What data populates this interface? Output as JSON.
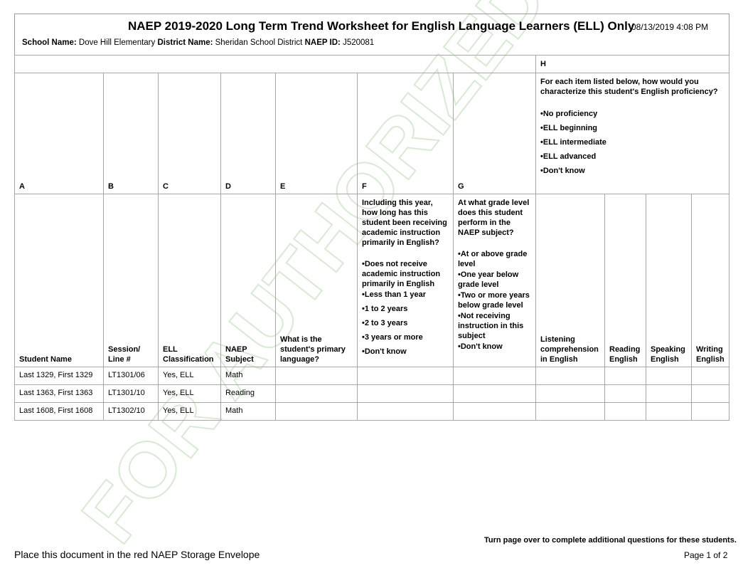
{
  "header": {
    "title": "NAEP 2019-2020 Long Term Trend Worksheet for English Language Learners (ELL) Only",
    "timestamp": "08/13/2019 4:08 PM",
    "school_label": "School Name:",
    "school": "Dove Hill Elementary",
    "district_label": "District Name:",
    "district": "Sheridan School District",
    "naep_id_label": "NAEP ID:",
    "naep_id": "J520081"
  },
  "watermark": "FOR AUTHORIZED USE ONLY",
  "columns": {
    "letters": [
      "A",
      "B",
      "C",
      "D",
      "E",
      "F",
      "G",
      "H"
    ],
    "h_question": "For each item listed below, how would you characterize this student's English proficiency?",
    "h_options": [
      "•No proficiency",
      "•ELL beginning",
      "•ELL intermediate",
      "•ELL advanced",
      "•Don't know"
    ],
    "headings": [
      "Student Name",
      "Session/ Line #",
      "ELL Classification",
      "NAEP Subject",
      "What is the student's primary language?"
    ],
    "f_question": "Including this year, how long has this student been receiving academic instruction primarily  in English?",
    "f_options": [
      "•Does not receive academic instruction primarily in English",
      "•Less than 1 year",
      "•1 to 2 years",
      "•2 to 3 years",
      "•3 years or more",
      "•Don't know"
    ],
    "g_question": "At what grade level does this student perform in the NAEP subject?",
    "g_options": [
      "•At or above grade level",
      "•One year below grade level",
      "•Two or more years below grade level",
      "•Not receiving instruction  in this subject",
      "•Don't know"
    ],
    "h_sub": [
      "Listening comprehension in English",
      "Reading English",
      "Speaking English",
      "Writing English"
    ]
  },
  "rows": [
    {
      "name": "Last 1329, First 1329",
      "session": "LT1301/06",
      "ell": "Yes, ELL",
      "subject": "Math"
    },
    {
      "name": "Last 1363, First 1363",
      "session": "LT1301/10",
      "ell": "Yes, ELL",
      "subject": "Reading"
    },
    {
      "name": "Last 1608, First 1608",
      "session": "LT1302/10",
      "ell": "Yes, ELL",
      "subject": "Math"
    }
  ],
  "footer": {
    "instruction": "Place this document in the red NAEP Storage Envelope",
    "turn_page": "Turn page over to complete additional questions for these students.",
    "page": "Page 1 of 2"
  }
}
